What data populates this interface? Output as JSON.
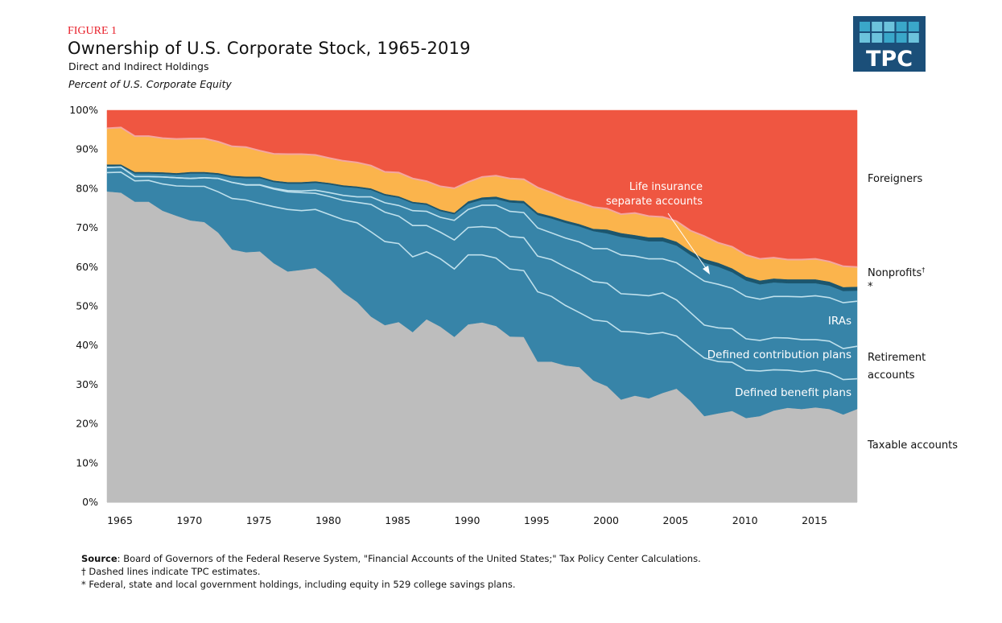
{
  "header": {
    "figure_label": "FIGURE 1",
    "title": "Ownership of U.S. Corporate Stock, 1965-2019",
    "subtitle": "Direct and Indirect Holdings",
    "units": "Percent of U.S. Corporate Equity"
  },
  "logo": {
    "text": "TPC",
    "colors": {
      "background": "#1b4f79",
      "tile_light": "#6cc3dc",
      "tile_mid": "#3aa7c9"
    }
  },
  "footer": {
    "source_label": "Source",
    "source_text": ": Board of Governors of the Federal Reserve System, \"Financial Accounts of the United States;\" Tax Policy Center Calculations.",
    "dagger_note": "† Dashed lines indicate TPC estimates.",
    "star_note": "* Federal, state and local government holdings, including equity in 529 college savings plans."
  },
  "chart_data": {
    "type": "area",
    "stacked": true,
    "title": "Ownership of U.S. Corporate Stock, 1965-2019",
    "ylabel": "Percent of U.S. Corporate Equity",
    "xlim": [
      1965,
      2019
    ],
    "ylim": [
      0,
      100
    ],
    "grid": false,
    "x_ticks": [
      1965,
      1970,
      1975,
      1980,
      1985,
      1990,
      1995,
      2000,
      2005,
      2010,
      2015
    ],
    "y_ticks": [
      "0%",
      "10%",
      "20%",
      "30%",
      "40%",
      "50%",
      "60%",
      "70%",
      "80%",
      "90%",
      "100%"
    ],
    "x": [
      1965,
      1966,
      1967,
      1968,
      1969,
      1970,
      1971,
      1972,
      1973,
      1974,
      1975,
      1976,
      1977,
      1978,
      1979,
      1980,
      1981,
      1982,
      1983,
      1984,
      1985,
      1986,
      1987,
      1988,
      1989,
      1990,
      1991,
      1992,
      1993,
      1994,
      1995,
      1996,
      1997,
      1998,
      1999,
      2000,
      2001,
      2002,
      2003,
      2004,
      2005,
      2006,
      2007,
      2008,
      2009,
      2010,
      2011,
      2012,
      2013,
      2014,
      2015,
      2016,
      2017,
      2018,
      2019
    ],
    "series": [
      {
        "name": "Taxable accounts",
        "color": "#bdbdbd",
        "values": [
          79.3,
          79.0,
          76.7,
          76.7,
          74.4,
          73.1,
          71.9,
          71.5,
          68.8,
          64.5,
          63.8,
          64.0,
          61.0,
          58.9,
          59.3,
          59.8,
          57.1,
          53.6,
          51.1,
          47.4,
          45.2,
          46.0,
          43.4,
          46.7,
          44.8,
          42.2,
          45.4,
          45.9,
          45.0,
          42.3,
          42.2,
          35.9,
          35.9,
          34.9,
          34.5,
          31.1,
          29.6,
          26.2,
          27.2,
          26.5,
          27.9,
          29.0,
          25.9,
          22.0,
          22.7,
          23.3,
          21.5,
          22.0,
          23.4,
          24.1,
          23.8,
          24.2,
          23.8,
          22.4,
          23.8
        ]
      },
      {
        "name": "Defined benefit plans",
        "color": "#3784a8",
        "values": [
          4.8,
          5.2,
          5.3,
          5.4,
          6.8,
          7.6,
          8.7,
          9.1,
          10.4,
          13.0,
          13.3,
          12.2,
          14.4,
          15.8,
          15.1,
          14.9,
          16.3,
          18.5,
          20.2,
          21.6,
          21.3,
          20.0,
          19.2,
          17.2,
          17.3,
          17.3,
          17.7,
          17.2,
          17.3,
          17.2,
          16.9,
          17.8,
          16.6,
          15.3,
          13.9,
          15.4,
          16.5,
          17.4,
          16.2,
          16.4,
          15.4,
          13.4,
          13.6,
          14.8,
          13.2,
          12.4,
          12.2,
          11.5,
          10.4,
          9.6,
          9.5,
          9.5,
          9.2,
          8.9,
          7.7
        ]
      },
      {
        "name": "Defined contribution plans",
        "color": "#3784a8",
        "values": [
          1.3,
          1.3,
          1.1,
          1.0,
          1.8,
          2.1,
          2.0,
          2.2,
          3.4,
          4.1,
          3.8,
          4.7,
          4.5,
          4.5,
          4.6,
          4.1,
          4.6,
          4.9,
          5.2,
          7.0,
          7.5,
          7.0,
          8.0,
          6.7,
          6.8,
          7.4,
          7.0,
          7.2,
          7.7,
          8.3,
          8.4,
          9.1,
          9.4,
          9.8,
          9.9,
          9.8,
          9.8,
          9.6,
          9.6,
          9.8,
          10.1,
          9.2,
          8.9,
          8.4,
          8.6,
          8.6,
          8.0,
          7.8,
          8.2,
          8.2,
          8.2,
          7.8,
          8.1,
          7.9,
          8.3
        ]
      },
      {
        "name": "IRAs",
        "color": "#3784a8",
        "values": [
          0,
          0,
          0,
          0,
          0,
          0,
          0,
          0,
          0,
          0,
          0.1,
          0.1,
          0.2,
          0.3,
          0.4,
          0.8,
          1.0,
          1.3,
          1.4,
          1.9,
          2.4,
          2.7,
          3.8,
          3.6,
          3.8,
          5.0,
          4.6,
          5.5,
          5.8,
          6.4,
          6.4,
          7.2,
          6.8,
          7.4,
          8.1,
          8.4,
          8.8,
          9.9,
          9.8,
          9.4,
          8.7,
          9.5,
          10.3,
          11.2,
          11.1,
          10.3,
          10.8,
          10.5,
          10.5,
          10.6,
          10.9,
          11.2,
          11.1,
          11.7,
          11.5
        ]
      },
      {
        "name": "Life insurance separate accounts",
        "color": "#3784a8",
        "values": [
          0.4,
          0.3,
          0.8,
          0.8,
          0.8,
          0.8,
          1.3,
          1.1,
          1.0,
          1.3,
          1.7,
          1.7,
          1.6,
          1.8,
          1.9,
          1.9,
          2.1,
          2.2,
          2.3,
          1.8,
          1.9,
          2.0,
          1.9,
          1.7,
          1.6,
          1.6,
          1.5,
          1.4,
          1.6,
          2.3,
          2.4,
          3.3,
          3.7,
          3.9,
          4.0,
          4.5,
          3.9,
          4.6,
          4.4,
          4.5,
          4.5,
          4.4,
          4.4,
          4.7,
          4.5,
          4.1,
          4.1,
          3.8,
          3.6,
          3.4,
          3.5,
          3.2,
          3.1,
          3.0,
          2.7
        ]
      },
      {
        "name": "*",
        "color": "#1c566e",
        "values": [
          0.4,
          0.4,
          0.4,
          0.4,
          0.4,
          0.4,
          0.4,
          0.4,
          0.4,
          0.4,
          0.4,
          0.4,
          0.4,
          0.4,
          0.4,
          0.4,
          0.4,
          0.4,
          0.4,
          0.4,
          0.4,
          0.4,
          0.4,
          0.4,
          0.4,
          0.4,
          0.6,
          0.6,
          0.6,
          0.6,
          0.6,
          0.6,
          0.6,
          0.6,
          0.6,
          0.6,
          1.0,
          1.0,
          1.0,
          1.0,
          1.0,
          1.0,
          1.0,
          1.0,
          1.0,
          1.0,
          1.0,
          1.0,
          1.0,
          1.0,
          1.0,
          1.0,
          1.0,
          1.0,
          1.0
        ]
      },
      {
        "name": "Nonprofits†",
        "color": "#fbb44c",
        "values": [
          9.2,
          9.4,
          9.1,
          9.1,
          8.7,
          8.7,
          8.5,
          8.5,
          8.0,
          7.5,
          7.5,
          6.6,
          6.8,
          7.1,
          7.1,
          6.7,
          6.3,
          6.2,
          6.1,
          5.8,
          5.6,
          6.0,
          5.9,
          5.6,
          5.9,
          6.2,
          4.9,
          5.2,
          5.3,
          5.5,
          5.5,
          6.4,
          6.0,
          5.6,
          5.5,
          5.5,
          5.3,
          4.8,
          5.6,
          5.4,
          5.2,
          5.2,
          5.2,
          5.8,
          5.1,
          5.5,
          5.5,
          5.5,
          5.3,
          5.0,
          5.0,
          5.2,
          5.1,
          5.3,
          5.0
        ]
      },
      {
        "name": "Foreigners",
        "color": "#ef5641",
        "values": [
          4.6,
          4.4,
          6.6,
          6.6,
          7.1,
          7.3,
          7.2,
          7.2,
          8.0,
          9.2,
          9.4,
          10.3,
          11.1,
          11.2,
          11.2,
          11.4,
          12.2,
          12.9,
          13.3,
          14.5,
          15.0,
          16.2,
          17.4,
          18.1,
          19.4,
          19.9,
          18.3,
          17.0,
          16.7,
          17.4,
          17.6,
          19.7,
          21.0,
          22.5,
          23.5,
          24.7,
          25.1,
          25.9,
          26.5,
          27.0,
          27.2,
          28.3,
          30.7,
          32.1,
          33.8,
          34.8,
          36.9,
          37.9,
          37.6,
          38.1,
          38.1,
          37.9,
          38.6,
          39.8,
          40.0
        ]
      }
    ],
    "boundary_line_color": "#bfe0ec",
    "nonprofit_top_line_color": "#f4a6a0",
    "legend_labels": {
      "foreigners": "Foreigners",
      "nonprofits": "Nonprofits",
      "nonprofits_mark": "†",
      "government": "*",
      "retirement_1": "Retirement",
      "retirement_2": "accounts",
      "taxable": "Taxable accounts"
    },
    "annotations": {
      "iras": "IRAs",
      "dc": "Defined contribution plans",
      "db": "Defined benefit plans",
      "life_1": "Life insurance",
      "life_2": "separate accounts"
    }
  }
}
